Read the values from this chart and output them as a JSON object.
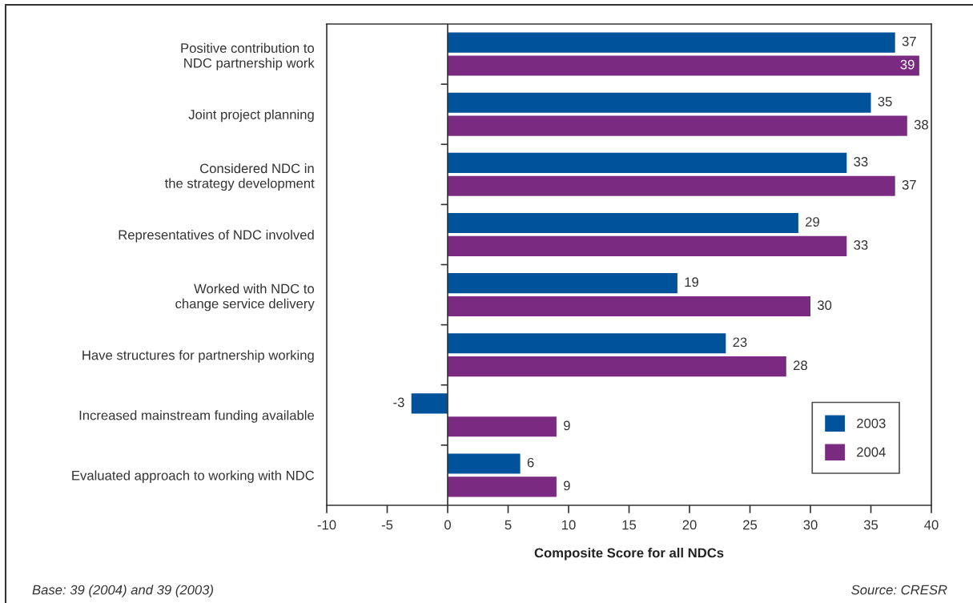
{
  "chart_data": {
    "type": "bar",
    "orientation": "horizontal",
    "categories": [
      "Positive contribution to\nNDC partnership work",
      "Joint project planning",
      "Considered NDC in\nthe strategy development",
      "Representatives of NDC involved",
      "Worked with NDC to\nchange service delivery",
      "Have structures for partnership working",
      "Increased mainstream funding available",
      "Evaluated approach to working with NDC"
    ],
    "series": [
      {
        "name": "2003",
        "color": "#00529b",
        "values": [
          37,
          35,
          33,
          29,
          19,
          23,
          -3,
          6
        ]
      },
      {
        "name": "2004",
        "color": "#7b2a82",
        "values": [
          39,
          38,
          37,
          33,
          30,
          28,
          9,
          9
        ]
      }
    ],
    "xlabel": "Composite Score for all NDCs",
    "xlim": [
      -10,
      40
    ],
    "xticks": [
      -10,
      -5,
      0,
      5,
      10,
      15,
      20,
      25,
      30,
      35,
      40
    ],
    "ref_lines": [
      {
        "axis": "x",
        "value": 0,
        "color": "#333333"
      }
    ],
    "data_labels": true,
    "legend": "bottom right",
    "annotations": [
      "Base: 39 (2004) and 39 (2003)",
      "Source: CRESR"
    ]
  }
}
